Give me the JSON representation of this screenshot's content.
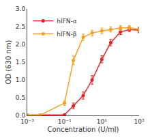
{
  "chart_data": {
    "type": "line",
    "xlabel": "Concentration (U/ml)",
    "ylabel": "OD (630 nm)",
    "x": [
      0.001,
      0.005,
      0.1,
      0.3,
      1,
      3,
      10,
      30,
      100,
      300,
      1000
    ],
    "series": [
      {
        "name": "hIFN-α",
        "color": "#e82020",
        "values": [
          0.01,
          0.01,
          0.02,
          0.27,
          0.56,
          1.0,
          1.58,
          2.05,
          2.35,
          2.42,
          2.4
        ],
        "errors": [
          0.005,
          0.005,
          0.02,
          0.08,
          0.1,
          0.12,
          0.1,
          0.09,
          0.07,
          0.06,
          0.07
        ]
      },
      {
        "name": "hIFN-β",
        "color": "#f5a020",
        "values": [
          0.01,
          0.01,
          0.35,
          1.55,
          2.2,
          2.32,
          2.38,
          2.42,
          2.46,
          2.47,
          2.43
        ],
        "errors": [
          0.005,
          0.005,
          0.07,
          0.12,
          0.09,
          0.08,
          0.08,
          0.07,
          0.07,
          0.06,
          0.06
        ]
      }
    ],
    "xlim": [
      0.001,
      1000
    ],
    "ylim": [
      0,
      3.0
    ],
    "xticks": [
      {
        "value": 0.001,
        "label": "10⁻³"
      },
      {
        "value": 0.1,
        "label": "10⁻¹"
      },
      {
        "value": 10,
        "label": "10¹"
      },
      {
        "value": 1000,
        "label": "10³"
      }
    ],
    "yticks": [
      {
        "value": 0,
        "label": "0.0"
      },
      0.5,
      {
        "value": 1,
        "label": "1.0"
      },
      1.5,
      {
        "value": 2,
        "label": "2.0"
      },
      2.5,
      {
        "value": 3,
        "label": "3.0"
      }
    ],
    "log": "x",
    "grid": false,
    "legend": "upper left",
    "marker": "circle"
  }
}
